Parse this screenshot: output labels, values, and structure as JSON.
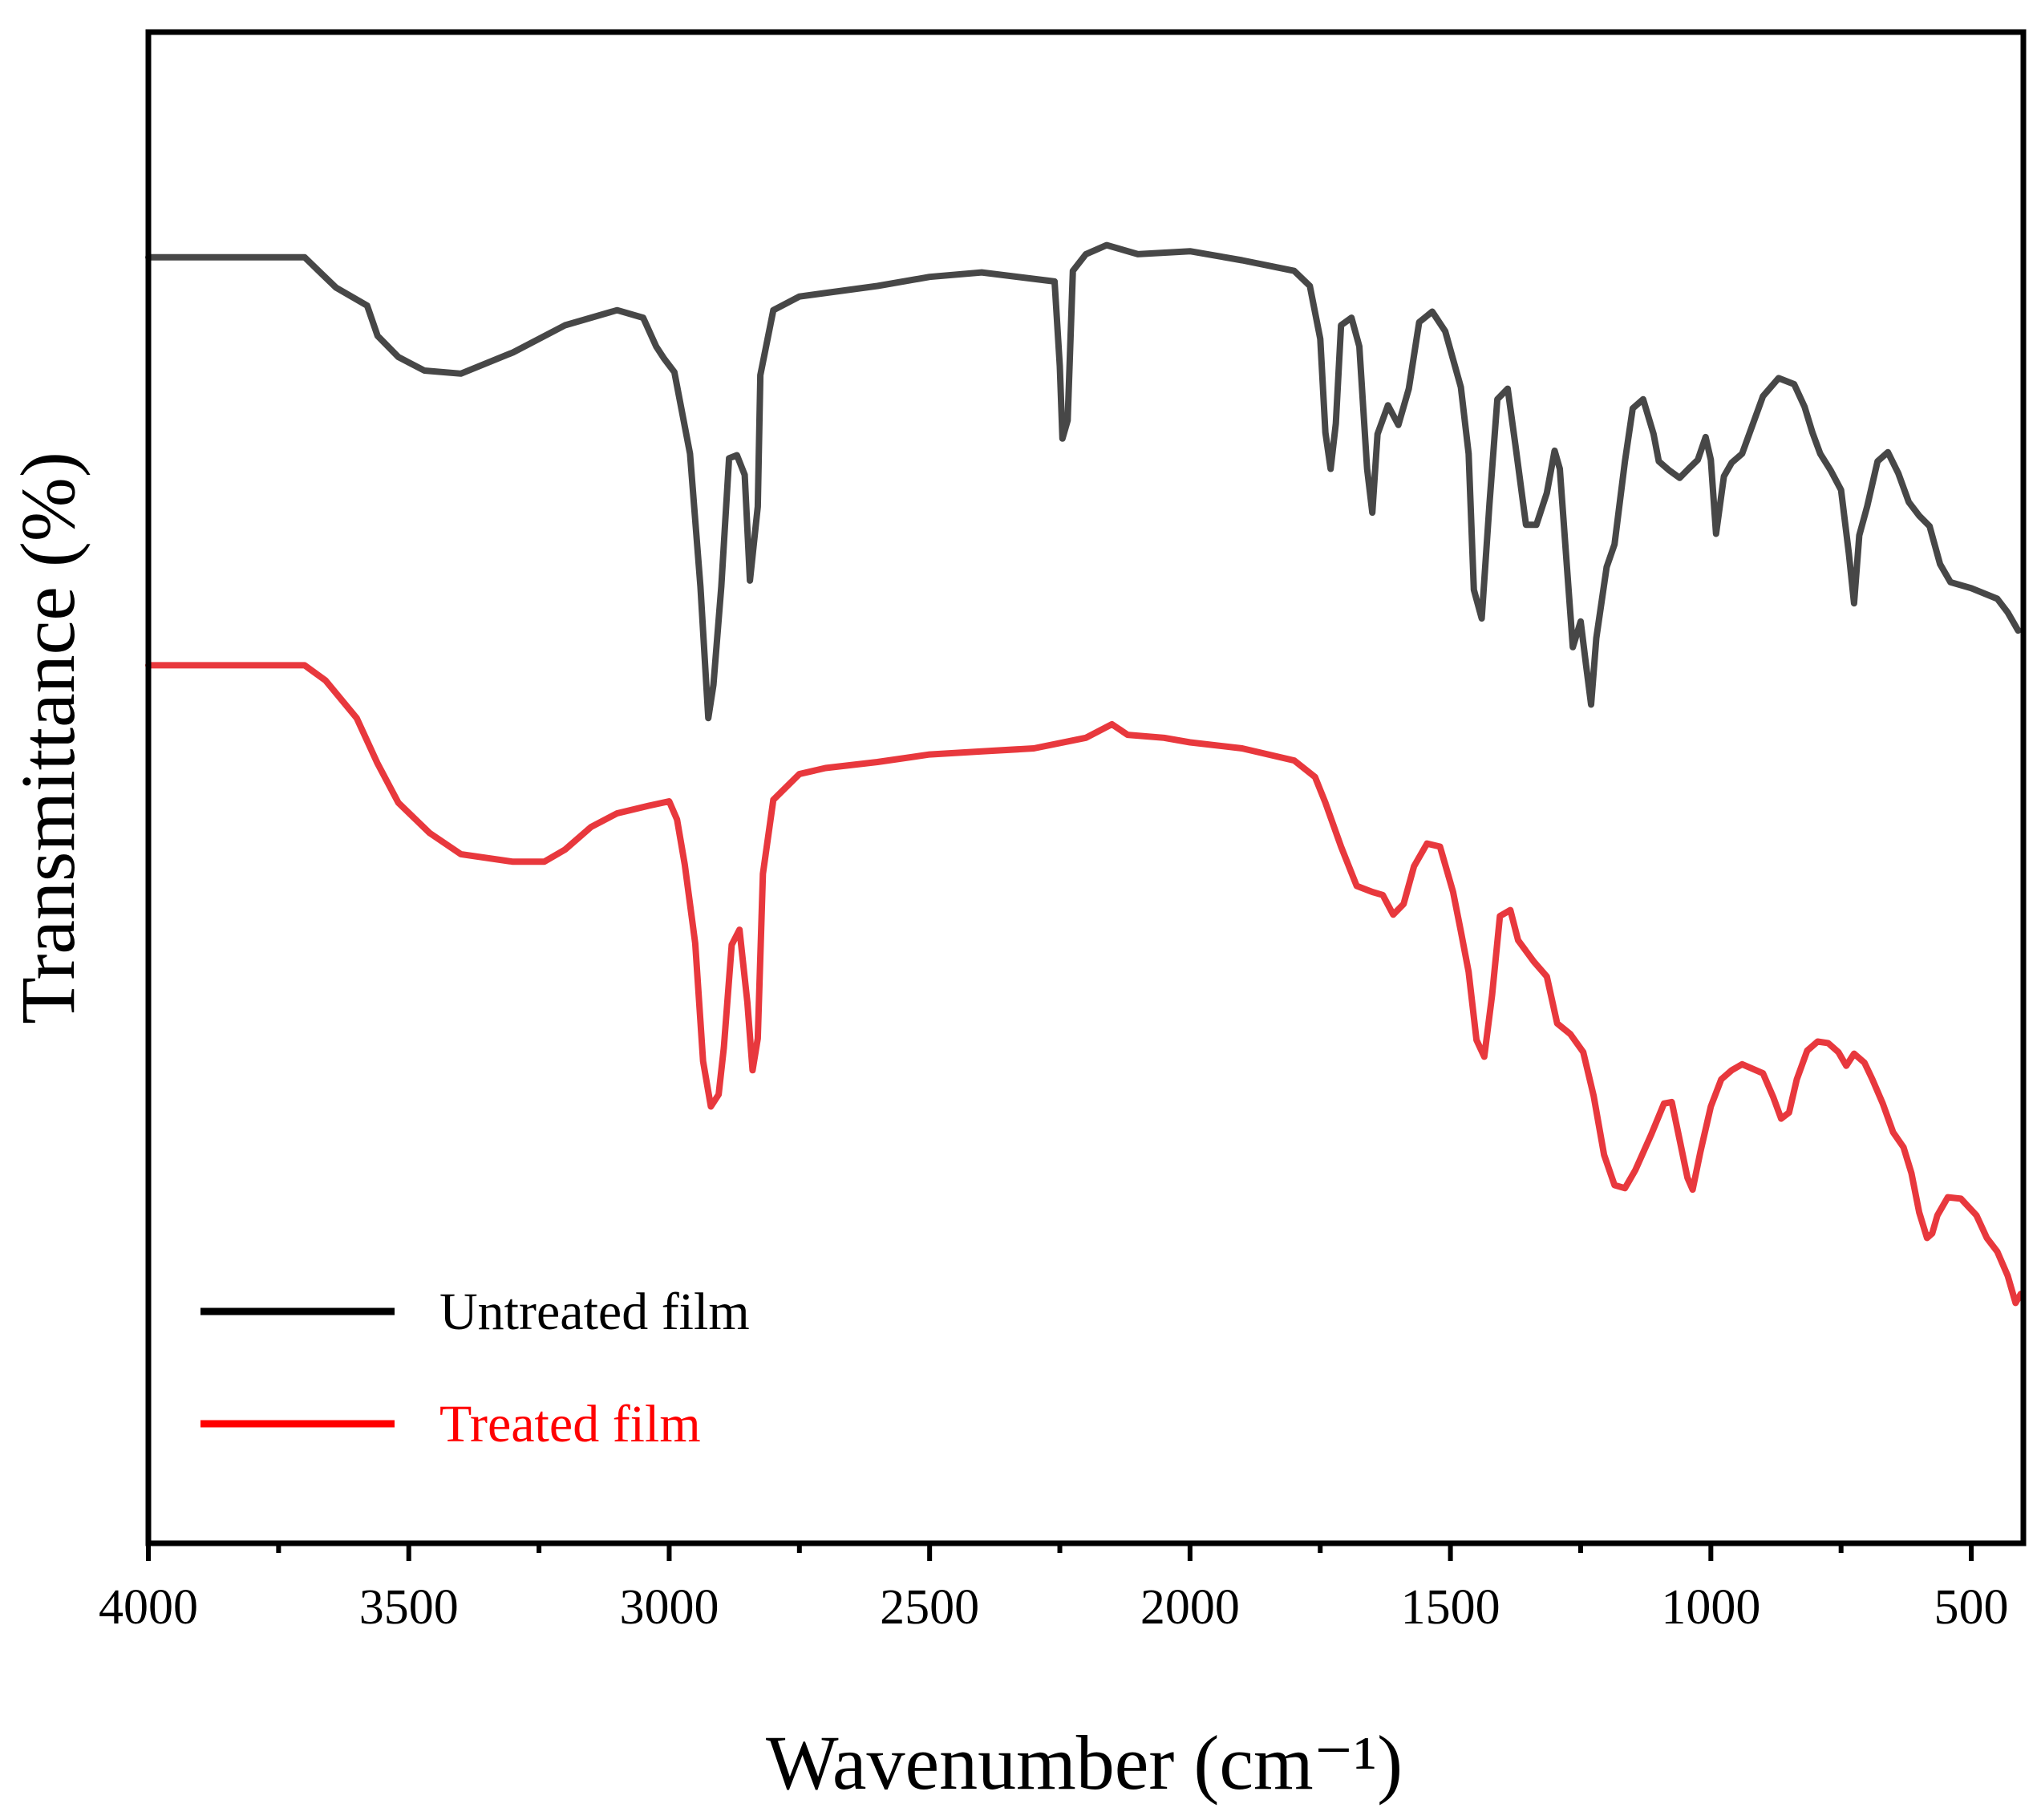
{
  "chart_data": {
    "type": "line",
    "title": "",
    "xlabel": "Wavenumber (cm⁻¹)",
    "ylabel": "Transmittance (%)",
    "xlim": [
      4000,
      400
    ],
    "ylim": [
      0,
      100
    ],
    "x_ticks": [
      4000,
      3500,
      3000,
      2500,
      2000,
      1500,
      1000,
      500
    ],
    "y_ticks_shown": false,
    "grid": false,
    "legend_position": "bottom-left",
    "series": [
      {
        "name": "Untreated film",
        "color": "#474747",
        "points": [
          [
            4000,
            85.1
          ],
          [
            3700,
            85.1
          ],
          [
            3670,
            84.1
          ],
          [
            3640,
            83.1
          ],
          [
            3580,
            81.9
          ],
          [
            3560,
            79.9
          ],
          [
            3520,
            78.5
          ],
          [
            3470,
            77.6
          ],
          [
            3400,
            77.4
          ],
          [
            3300,
            78.8
          ],
          [
            3200,
            80.6
          ],
          [
            3100,
            81.6
          ],
          [
            3050,
            81.1
          ],
          [
            3025,
            79.2
          ],
          [
            3010,
            78.4
          ],
          [
            2990,
            77.5
          ],
          [
            2960,
            72.1
          ],
          [
            2940,
            63.3
          ],
          [
            2925,
            54.6
          ],
          [
            2915,
            56.8
          ],
          [
            2900,
            63.3
          ],
          [
            2885,
            71.8
          ],
          [
            2870,
            72.0
          ],
          [
            2855,
            70.7
          ],
          [
            2845,
            63.7
          ],
          [
            2830,
            68.6
          ],
          [
            2825,
            77.3
          ],
          [
            2800,
            81.6
          ],
          [
            2750,
            82.5
          ],
          [
            2600,
            83.2
          ],
          [
            2500,
            83.8
          ],
          [
            2400,
            84.1
          ],
          [
            2260,
            83.5
          ],
          [
            2250,
            77.9
          ],
          [
            2245,
            73.1
          ],
          [
            2235,
            74.3
          ],
          [
            2225,
            84.2
          ],
          [
            2200,
            85.3
          ],
          [
            2160,
            85.9
          ],
          [
            2100,
            85.3
          ],
          [
            2000,
            85.5
          ],
          [
            1900,
            84.9
          ],
          [
            1800,
            84.2
          ],
          [
            1770,
            83.2
          ],
          [
            1750,
            79.7
          ],
          [
            1740,
            73.5
          ],
          [
            1730,
            71.1
          ],
          [
            1720,
            74.1
          ],
          [
            1710,
            80.6
          ],
          [
            1690,
            81.1
          ],
          [
            1675,
            79.2
          ],
          [
            1660,
            71.1
          ],
          [
            1650,
            68.2
          ],
          [
            1640,
            73.4
          ],
          [
            1620,
            75.3
          ],
          [
            1600,
            74.0
          ],
          [
            1580,
            76.4
          ],
          [
            1560,
            80.8
          ],
          [
            1535,
            81.5
          ],
          [
            1510,
            80.2
          ],
          [
            1480,
            76.5
          ],
          [
            1465,
            72.1
          ],
          [
            1455,
            63.1
          ],
          [
            1440,
            61.2
          ],
          [
            1425,
            68.8
          ],
          [
            1410,
            75.7
          ],
          [
            1390,
            76.4
          ],
          [
            1375,
            72.6
          ],
          [
            1355,
            67.4
          ],
          [
            1335,
            67.4
          ],
          [
            1315,
            69.5
          ],
          [
            1300,
            72.3
          ],
          [
            1290,
            71.1
          ],
          [
            1275,
            64.0
          ],
          [
            1265,
            59.3
          ],
          [
            1250,
            61.0
          ],
          [
            1240,
            58.2
          ],
          [
            1230,
            55.5
          ],
          [
            1220,
            59.9
          ],
          [
            1200,
            64.6
          ],
          [
            1185,
            66.1
          ],
          [
            1165,
            71.6
          ],
          [
            1150,
            75.1
          ],
          [
            1130,
            75.7
          ],
          [
            1110,
            73.4
          ],
          [
            1100,
            71.6
          ],
          [
            1080,
            71.0
          ],
          [
            1060,
            70.5
          ],
          [
            1040,
            71.2
          ],
          [
            1025,
            71.7
          ],
          [
            1010,
            73.2
          ],
          [
            1000,
            71.7
          ],
          [
            990,
            66.8
          ],
          [
            975,
            70.6
          ],
          [
            960,
            71.5
          ],
          [
            940,
            72.1
          ],
          [
            900,
            75.9
          ],
          [
            870,
            77.1
          ],
          [
            840,
            76.7
          ],
          [
            820,
            75.2
          ],
          [
            805,
            73.5
          ],
          [
            790,
            72.1
          ],
          [
            770,
            71.0
          ],
          [
            750,
            69.7
          ],
          [
            735,
            65.5
          ],
          [
            725,
            62.2
          ],
          [
            715,
            66.7
          ],
          [
            700,
            68.6
          ],
          [
            680,
            71.6
          ],
          [
            660,
            72.2
          ],
          [
            640,
            70.8
          ],
          [
            620,
            68.9
          ],
          [
            600,
            68.0
          ],
          [
            580,
            67.3
          ],
          [
            560,
            64.8
          ],
          [
            540,
            63.6
          ],
          [
            500,
            63.2
          ],
          [
            450,
            62.5
          ],
          [
            430,
            61.6
          ],
          [
            410,
            60.4
          ]
        ]
      },
      {
        "name": "Treated film",
        "color": "#e8383d",
        "points": [
          [
            4000,
            58.1
          ],
          [
            3700,
            58.1
          ],
          [
            3660,
            57.1
          ],
          [
            3600,
            54.6
          ],
          [
            3560,
            51.6
          ],
          [
            3520,
            49.0
          ],
          [
            3460,
            47.0
          ],
          [
            3400,
            45.6
          ],
          [
            3300,
            45.1
          ],
          [
            3240,
            45.1
          ],
          [
            3200,
            45.9
          ],
          [
            3150,
            47.4
          ],
          [
            3100,
            48.3
          ],
          [
            3040,
            48.8
          ],
          [
            3000,
            49.1
          ],
          [
            2985,
            47.9
          ],
          [
            2970,
            44.9
          ],
          [
            2950,
            39.7
          ],
          [
            2935,
            31.9
          ],
          [
            2920,
            28.9
          ],
          [
            2905,
            29.7
          ],
          [
            2895,
            32.8
          ],
          [
            2880,
            39.6
          ],
          [
            2865,
            40.6
          ],
          [
            2850,
            35.8
          ],
          [
            2840,
            31.3
          ],
          [
            2830,
            33.4
          ],
          [
            2820,
            44.3
          ],
          [
            2800,
            49.2
          ],
          [
            2750,
            50.9
          ],
          [
            2700,
            51.3
          ],
          [
            2600,
            51.7
          ],
          [
            2500,
            52.2
          ],
          [
            2400,
            52.4
          ],
          [
            2300,
            52.6
          ],
          [
            2200,
            53.3
          ],
          [
            2150,
            54.2
          ],
          [
            2120,
            53.5
          ],
          [
            2050,
            53.3
          ],
          [
            2000,
            53.0
          ],
          [
            1900,
            52.6
          ],
          [
            1800,
            51.8
          ],
          [
            1760,
            50.7
          ],
          [
            1740,
            49.0
          ],
          [
            1710,
            46.1
          ],
          [
            1680,
            43.5
          ],
          [
            1650,
            43.1
          ],
          [
            1630,
            42.9
          ],
          [
            1610,
            41.6
          ],
          [
            1590,
            42.3
          ],
          [
            1570,
            44.8
          ],
          [
            1545,
            46.3
          ],
          [
            1520,
            46.1
          ],
          [
            1495,
            43.1
          ],
          [
            1480,
            40.5
          ],
          [
            1465,
            37.8
          ],
          [
            1450,
            33.3
          ],
          [
            1435,
            32.2
          ],
          [
            1420,
            36.3
          ],
          [
            1405,
            41.5
          ],
          [
            1385,
            41.9
          ],
          [
            1370,
            39.9
          ],
          [
            1340,
            38.5
          ],
          [
            1315,
            37.5
          ],
          [
            1295,
            34.4
          ],
          [
            1270,
            33.7
          ],
          [
            1245,
            32.5
          ],
          [
            1225,
            29.6
          ],
          [
            1205,
            25.7
          ],
          [
            1185,
            23.7
          ],
          [
            1165,
            23.5
          ],
          [
            1145,
            24.7
          ],
          [
            1115,
            27.0
          ],
          [
            1090,
            29.1
          ],
          [
            1075,
            29.2
          ],
          [
            1060,
            26.7
          ],
          [
            1045,
            24.2
          ],
          [
            1035,
            23.4
          ],
          [
            1020,
            25.9
          ],
          [
            1000,
            28.9
          ],
          [
            980,
            30.7
          ],
          [
            960,
            31.3
          ],
          [
            940,
            31.7
          ],
          [
            900,
            31.1
          ],
          [
            880,
            29.5
          ],
          [
            865,
            28.1
          ],
          [
            850,
            28.5
          ],
          [
            835,
            30.7
          ],
          [
            815,
            32.6
          ],
          [
            795,
            33.2
          ],
          [
            775,
            33.1
          ],
          [
            755,
            32.5
          ],
          [
            740,
            31.6
          ],
          [
            725,
            32.4
          ],
          [
            705,
            31.8
          ],
          [
            690,
            30.7
          ],
          [
            670,
            29.1
          ],
          [
            650,
            27.2
          ],
          [
            630,
            26.2
          ],
          [
            615,
            24.5
          ],
          [
            600,
            21.9
          ],
          [
            585,
            20.2
          ],
          [
            575,
            20.5
          ],
          [
            565,
            21.7
          ],
          [
            545,
            22.9
          ],
          [
            520,
            22.8
          ],
          [
            490,
            21.7
          ],
          [
            470,
            20.2
          ],
          [
            450,
            19.3
          ],
          [
            430,
            17.7
          ],
          [
            415,
            15.9
          ],
          [
            405,
            16.5
          ]
        ]
      }
    ]
  }
}
